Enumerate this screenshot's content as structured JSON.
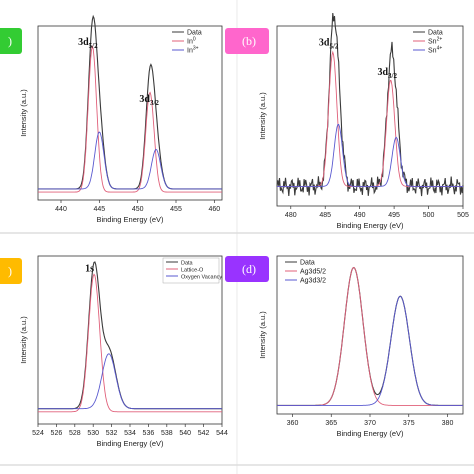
{
  "colors": {
    "data": "#3a3a3a",
    "fit1": "#e0607a",
    "fit2": "#5a5ad0",
    "badge_a": "#33cc33",
    "badge_b": "#ff66cc",
    "badge_c": "#ffbb00",
    "badge_d": "#9933ff"
  },
  "chart_data": [
    {
      "type": "line",
      "panel": "a",
      "badge": ")",
      "xlabel": "Binding Energy (eV)",
      "ylabel": "Intensity (a.u.)",
      "xlim": [
        437,
        461
      ],
      "ylim": [
        0,
        1.1
      ],
      "xticks": [
        440,
        445,
        450,
        455,
        460
      ],
      "peak_labels": [
        {
          "main": "3d",
          "sub": "5/2",
          "x": 443.5,
          "y": 0.98
        },
        {
          "main": "3d",
          "sub": "3/2",
          "x": 451.5,
          "y": 0.62
        }
      ],
      "legend": {
        "position": "top-right",
        "entries": [
          {
            "label": "Data",
            "sup": "",
            "series": 0
          },
          {
            "label": "In",
            "sup": "0",
            "series": 1
          },
          {
            "label": "In",
            "sup": "3+",
            "series": 2
          }
        ]
      },
      "series": [
        {
          "name": "Data",
          "components": [
            {
              "center": 444.1,
              "width": 0.55,
              "height": 0.95
            },
            {
              "center": 445.0,
              "width": 0.6,
              "height": 0.38
            },
            {
              "center": 451.6,
              "width": 0.55,
              "height": 0.66
            },
            {
              "center": 452.4,
              "width": 0.6,
              "height": 0.27
            }
          ],
          "baseline": 0.07
        },
        {
          "name": "In0",
          "components": [
            {
              "center": 444.1,
              "width": 0.55,
              "height": 0.92
            },
            {
              "center": 451.6,
              "width": 0.55,
              "height": 0.63
            }
          ],
          "baseline": 0.05
        },
        {
          "name": "In3+",
          "components": [
            {
              "center": 445.0,
              "width": 0.6,
              "height": 0.36
            },
            {
              "center": 452.4,
              "width": 0.6,
              "height": 0.25
            }
          ],
          "baseline": 0.07
        }
      ]
    },
    {
      "type": "line",
      "panel": "b",
      "badge": "(b)",
      "xlabel": "Binding Energy (eV)",
      "ylabel": "Intensity (a.u.)",
      "xlim": [
        478,
        505
      ],
      "ylim": [
        0,
        1.1
      ],
      "xticks": [
        480,
        485,
        490,
        495,
        500,
        505
      ],
      "peak_labels": [
        {
          "main": "3d",
          "sub": "5/2",
          "x": 485.5,
          "y": 0.98
        },
        {
          "main": "3d",
          "sub": "3/2",
          "x": 494.0,
          "y": 0.8
        }
      ],
      "legend": {
        "position": "top-right",
        "entries": [
          {
            "label": "Data",
            "sup": "",
            "series": 0
          },
          {
            "label": "Sn",
            "sup": "2+",
            "series": 1
          },
          {
            "label": "Sn",
            "sup": "4+",
            "series": 2
          }
        ]
      },
      "series": [
        {
          "name": "Data",
          "components": [
            {
              "center": 486.1,
              "width": 0.6,
              "height": 0.85
            },
            {
              "center": 486.9,
              "width": 0.6,
              "height": 0.4
            },
            {
              "center": 494.5,
              "width": 0.6,
              "height": 0.68
            },
            {
              "center": 495.3,
              "width": 0.6,
              "height": 0.3
            }
          ],
          "baseline": 0.12,
          "noise": 0.06
        },
        {
          "name": "Sn2+",
          "components": [
            {
              "center": 486.1,
              "width": 0.6,
              "height": 0.82
            },
            {
              "center": 494.5,
              "width": 0.6,
              "height": 0.65
            }
          ],
          "baseline": 0.12
        },
        {
          "name": "Sn4+",
          "components": [
            {
              "center": 486.9,
              "width": 0.6,
              "height": 0.38
            },
            {
              "center": 495.3,
              "width": 0.6,
              "height": 0.3
            }
          ],
          "baseline": 0.12
        }
      ]
    },
    {
      "type": "line",
      "panel": "c",
      "badge": ")",
      "xlabel": "Binding Energy (eV)",
      "ylabel": "Intensity (a.u.)",
      "xlim": [
        524,
        544
      ],
      "ylim": [
        0,
        1.1
      ],
      "xticks": [
        524,
        526,
        528,
        530,
        532,
        534,
        536,
        538,
        540,
        542,
        544
      ],
      "peak_labels": [
        {
          "main": "1s",
          "sub": "",
          "x": 529.6,
          "y": 1.0
        }
      ],
      "legend": {
        "position": "top-right",
        "entries": [
          {
            "label": "Data",
            "sup": "",
            "series": 0
          },
          {
            "label": "Lattice-O",
            "sup": "",
            "series": 1
          },
          {
            "label": "Oxygen Vacancy",
            "sup": "",
            "series": 2
          }
        ]
      },
      "series": [
        {
          "name": "Data",
          "components": [
            {
              "center": 530.1,
              "width": 0.6,
              "height": 0.92
            },
            {
              "center": 531.7,
              "width": 0.75,
              "height": 0.38
            }
          ],
          "baseline": 0.1
        },
        {
          "name": "Lattice-O",
          "components": [
            {
              "center": 530.1,
              "width": 0.6,
              "height": 0.9
            }
          ],
          "baseline": 0.08
        },
        {
          "name": "Oxygen Vacancy",
          "components": [
            {
              "center": 531.7,
              "width": 0.75,
              "height": 0.36
            }
          ],
          "baseline": 0.1
        }
      ]
    },
    {
      "type": "line",
      "panel": "d",
      "badge": "(d)",
      "xlabel": "Binding Energy (eV)",
      "ylabel": "Intensity (a.u.)",
      "xlim": [
        358,
        382
      ],
      "ylim": [
        0,
        1.1
      ],
      "xticks": [
        360,
        365,
        370,
        375,
        380
      ],
      "peak_labels": [],
      "legend": {
        "position": "top-left",
        "entries": [
          {
            "label": "Data",
            "sup": "",
            "series": 0
          },
          {
            "label": "Ag3d5/2",
            "sup": "",
            "series": 1
          },
          {
            "label": "Ag3d3/2",
            "sup": "",
            "series": 2
          }
        ]
      },
      "series": [
        {
          "name": "Data",
          "components": [
            {
              "center": 367.9,
              "width": 1.2,
              "height": 0.96
            },
            {
              "center": 373.9,
              "width": 1.2,
              "height": 0.76
            }
          ],
          "baseline": 0.06
        },
        {
          "name": "Ag3d5/2",
          "components": [
            {
              "center": 367.9,
              "width": 1.2,
              "height": 0.96
            }
          ],
          "baseline": 0.06
        },
        {
          "name": "Ag3d3/2",
          "components": [
            {
              "center": 373.9,
              "width": 1.2,
              "height": 0.76
            }
          ],
          "baseline": 0.06
        }
      ]
    }
  ]
}
